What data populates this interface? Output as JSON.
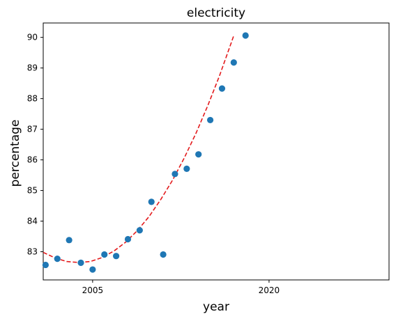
{
  "chart_data": {
    "type": "scatter",
    "title": "electricity",
    "xlabel": "year",
    "ylabel": "percentage",
    "xlim": [
      2000.8,
      2030.2
    ],
    "ylim": [
      82.08,
      90.47
    ],
    "xticks": [
      2005,
      2020
    ],
    "yticks": [
      83,
      84,
      85,
      86,
      87,
      88,
      89,
      90
    ],
    "grid": false,
    "legend": "none",
    "point_color": "#1f77b4",
    "fit_color": "#e31a1c",
    "points": {
      "x": [
        2001,
        2002,
        2003,
        2004,
        2005,
        2006,
        2007,
        2008,
        2009,
        2010,
        2011,
        2012,
        2013,
        2014,
        2015,
        2016,
        2017,
        2018
      ],
      "y": [
        82.57,
        82.77,
        83.38,
        82.64,
        82.42,
        82.91,
        82.86,
        83.41,
        83.7,
        84.63,
        82.91,
        85.54,
        85.71,
        86.18,
        87.3,
        88.33,
        89.18,
        90.06
      ]
    },
    "fit": {
      "x": [
        2000.8,
        2001.8,
        2002.8,
        2003.8,
        2004.8,
        2005.8,
        2006.8,
        2007.8,
        2008.8,
        2009.8,
        2010.8,
        2011.8,
        2012.8,
        2013.8,
        2014.8,
        2015.8,
        2016.8,
        2017.0
      ],
      "y": [
        82.98,
        82.8,
        82.68,
        82.65,
        82.68,
        82.81,
        83.02,
        83.31,
        83.69,
        84.15,
        84.71,
        85.34,
        86.07,
        86.88,
        87.78,
        88.76,
        89.84,
        90.06
      ]
    }
  }
}
